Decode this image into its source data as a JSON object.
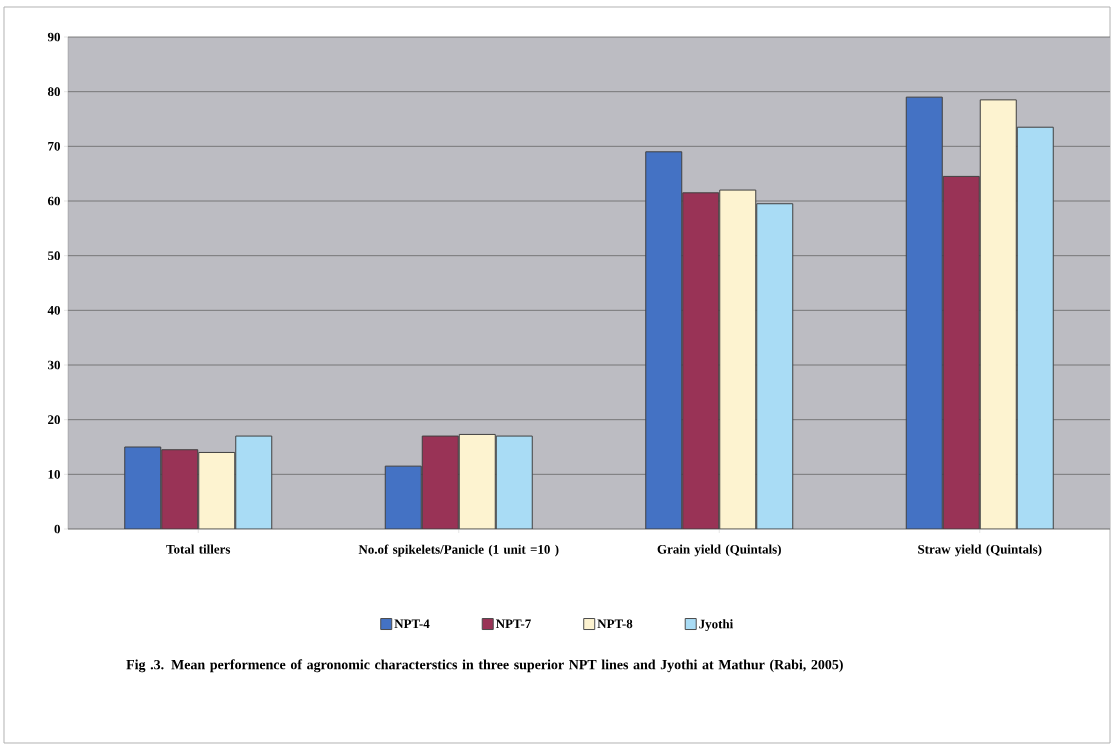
{
  "chart_data": {
    "type": "bar",
    "title": "Fig .3. Mean performence of agronomic characterstics  in  three superior NPT lines and Jyothi at Mathur  (Rabi, 2005)",
    "categories": [
      "Total tillers",
      "No.of spikelets/Panicle (1 unit =10 )",
      "Grain yield (Quintals)",
      "Straw yield (Quintals)"
    ],
    "series": [
      {
        "name": "NPT-4",
        "color": "#4472c4",
        "values": [
          15,
          11.5,
          69,
          79
        ]
      },
      {
        "name": "NPT-7",
        "color": "#993356",
        "values": [
          14.5,
          17,
          61.5,
          64.5
        ]
      },
      {
        "name": "NPT-8",
        "color": "#fdf3d0",
        "values": [
          14,
          17.3,
          62,
          78.5
        ]
      },
      {
        "name": "Jyothi",
        "color": "#a9dcf5",
        "values": [
          17,
          17,
          59.5,
          73.5
        ]
      }
    ],
    "ylim": [
      0,
      90
    ],
    "yticks": [
      0,
      10,
      20,
      30,
      40,
      50,
      60,
      70,
      80,
      90
    ],
    "grid": "y",
    "legend": "bottom"
  }
}
